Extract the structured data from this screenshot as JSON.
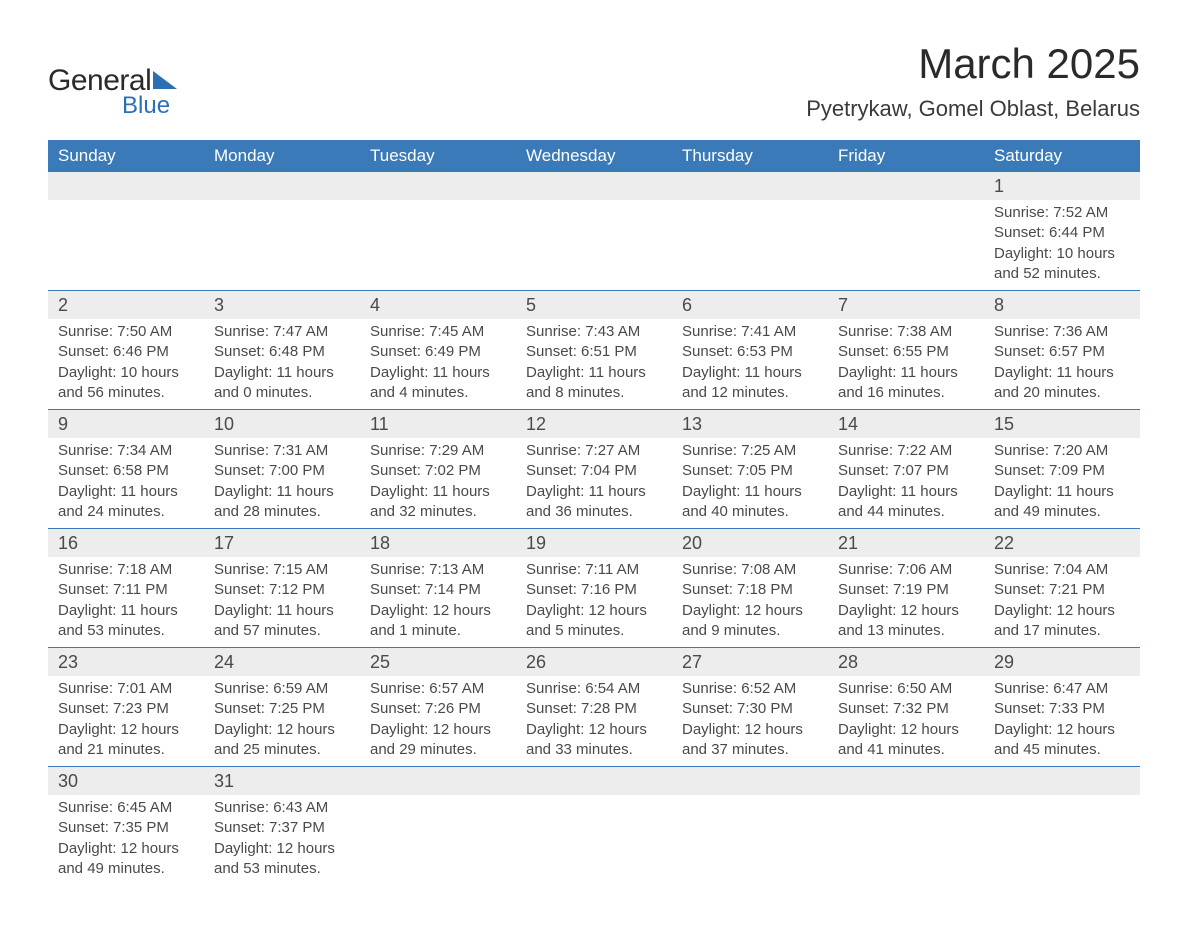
{
  "logo": {
    "text1": "General",
    "text2": "Blue"
  },
  "title": "March 2025",
  "location": "Pyetrykaw, Gomel Oblast, Belarus",
  "colors": {
    "header_bg": "#3a7ab8",
    "header_text": "#ffffff",
    "daynum_bg": "#ededed",
    "row_border": "#3a7ab8",
    "body_text": "#4a4a4a",
    "logo_accent": "#2d6fb5"
  },
  "day_headers": [
    "Sunday",
    "Monday",
    "Tuesday",
    "Wednesday",
    "Thursday",
    "Friday",
    "Saturday"
  ],
  "first_weekday_index": 6,
  "days": [
    {
      "n": 1,
      "sunrise": "7:52 AM",
      "sunset": "6:44 PM",
      "daylight": "10 hours and 52 minutes."
    },
    {
      "n": 2,
      "sunrise": "7:50 AM",
      "sunset": "6:46 PM",
      "daylight": "10 hours and 56 minutes."
    },
    {
      "n": 3,
      "sunrise": "7:47 AM",
      "sunset": "6:48 PM",
      "daylight": "11 hours and 0 minutes."
    },
    {
      "n": 4,
      "sunrise": "7:45 AM",
      "sunset": "6:49 PM",
      "daylight": "11 hours and 4 minutes."
    },
    {
      "n": 5,
      "sunrise": "7:43 AM",
      "sunset": "6:51 PM",
      "daylight": "11 hours and 8 minutes."
    },
    {
      "n": 6,
      "sunrise": "7:41 AM",
      "sunset": "6:53 PM",
      "daylight": "11 hours and 12 minutes."
    },
    {
      "n": 7,
      "sunrise": "7:38 AM",
      "sunset": "6:55 PM",
      "daylight": "11 hours and 16 minutes."
    },
    {
      "n": 8,
      "sunrise": "7:36 AM",
      "sunset": "6:57 PM",
      "daylight": "11 hours and 20 minutes."
    },
    {
      "n": 9,
      "sunrise": "7:34 AM",
      "sunset": "6:58 PM",
      "daylight": "11 hours and 24 minutes."
    },
    {
      "n": 10,
      "sunrise": "7:31 AM",
      "sunset": "7:00 PM",
      "daylight": "11 hours and 28 minutes."
    },
    {
      "n": 11,
      "sunrise": "7:29 AM",
      "sunset": "7:02 PM",
      "daylight": "11 hours and 32 minutes."
    },
    {
      "n": 12,
      "sunrise": "7:27 AM",
      "sunset": "7:04 PM",
      "daylight": "11 hours and 36 minutes."
    },
    {
      "n": 13,
      "sunrise": "7:25 AM",
      "sunset": "7:05 PM",
      "daylight": "11 hours and 40 minutes."
    },
    {
      "n": 14,
      "sunrise": "7:22 AM",
      "sunset": "7:07 PM",
      "daylight": "11 hours and 44 minutes."
    },
    {
      "n": 15,
      "sunrise": "7:20 AM",
      "sunset": "7:09 PM",
      "daylight": "11 hours and 49 minutes."
    },
    {
      "n": 16,
      "sunrise": "7:18 AM",
      "sunset": "7:11 PM",
      "daylight": "11 hours and 53 minutes."
    },
    {
      "n": 17,
      "sunrise": "7:15 AM",
      "sunset": "7:12 PM",
      "daylight": "11 hours and 57 minutes."
    },
    {
      "n": 18,
      "sunrise": "7:13 AM",
      "sunset": "7:14 PM",
      "daylight": "12 hours and 1 minute."
    },
    {
      "n": 19,
      "sunrise": "7:11 AM",
      "sunset": "7:16 PM",
      "daylight": "12 hours and 5 minutes."
    },
    {
      "n": 20,
      "sunrise": "7:08 AM",
      "sunset": "7:18 PM",
      "daylight": "12 hours and 9 minutes."
    },
    {
      "n": 21,
      "sunrise": "7:06 AM",
      "sunset": "7:19 PM",
      "daylight": "12 hours and 13 minutes."
    },
    {
      "n": 22,
      "sunrise": "7:04 AM",
      "sunset": "7:21 PM",
      "daylight": "12 hours and 17 minutes."
    },
    {
      "n": 23,
      "sunrise": "7:01 AM",
      "sunset": "7:23 PM",
      "daylight": "12 hours and 21 minutes."
    },
    {
      "n": 24,
      "sunrise": "6:59 AM",
      "sunset": "7:25 PM",
      "daylight": "12 hours and 25 minutes."
    },
    {
      "n": 25,
      "sunrise": "6:57 AM",
      "sunset": "7:26 PM",
      "daylight": "12 hours and 29 minutes."
    },
    {
      "n": 26,
      "sunrise": "6:54 AM",
      "sunset": "7:28 PM",
      "daylight": "12 hours and 33 minutes."
    },
    {
      "n": 27,
      "sunrise": "6:52 AM",
      "sunset": "7:30 PM",
      "daylight": "12 hours and 37 minutes."
    },
    {
      "n": 28,
      "sunrise": "6:50 AM",
      "sunset": "7:32 PM",
      "daylight": "12 hours and 41 minutes."
    },
    {
      "n": 29,
      "sunrise": "6:47 AM",
      "sunset": "7:33 PM",
      "daylight": "12 hours and 45 minutes."
    },
    {
      "n": 30,
      "sunrise": "6:45 AM",
      "sunset": "7:35 PM",
      "daylight": "12 hours and 49 minutes."
    },
    {
      "n": 31,
      "sunrise": "6:43 AM",
      "sunset": "7:37 PM",
      "daylight": "12 hours and 53 minutes."
    }
  ],
  "labels": {
    "sunrise": "Sunrise: ",
    "sunset": "Sunset: ",
    "daylight": "Daylight: "
  }
}
